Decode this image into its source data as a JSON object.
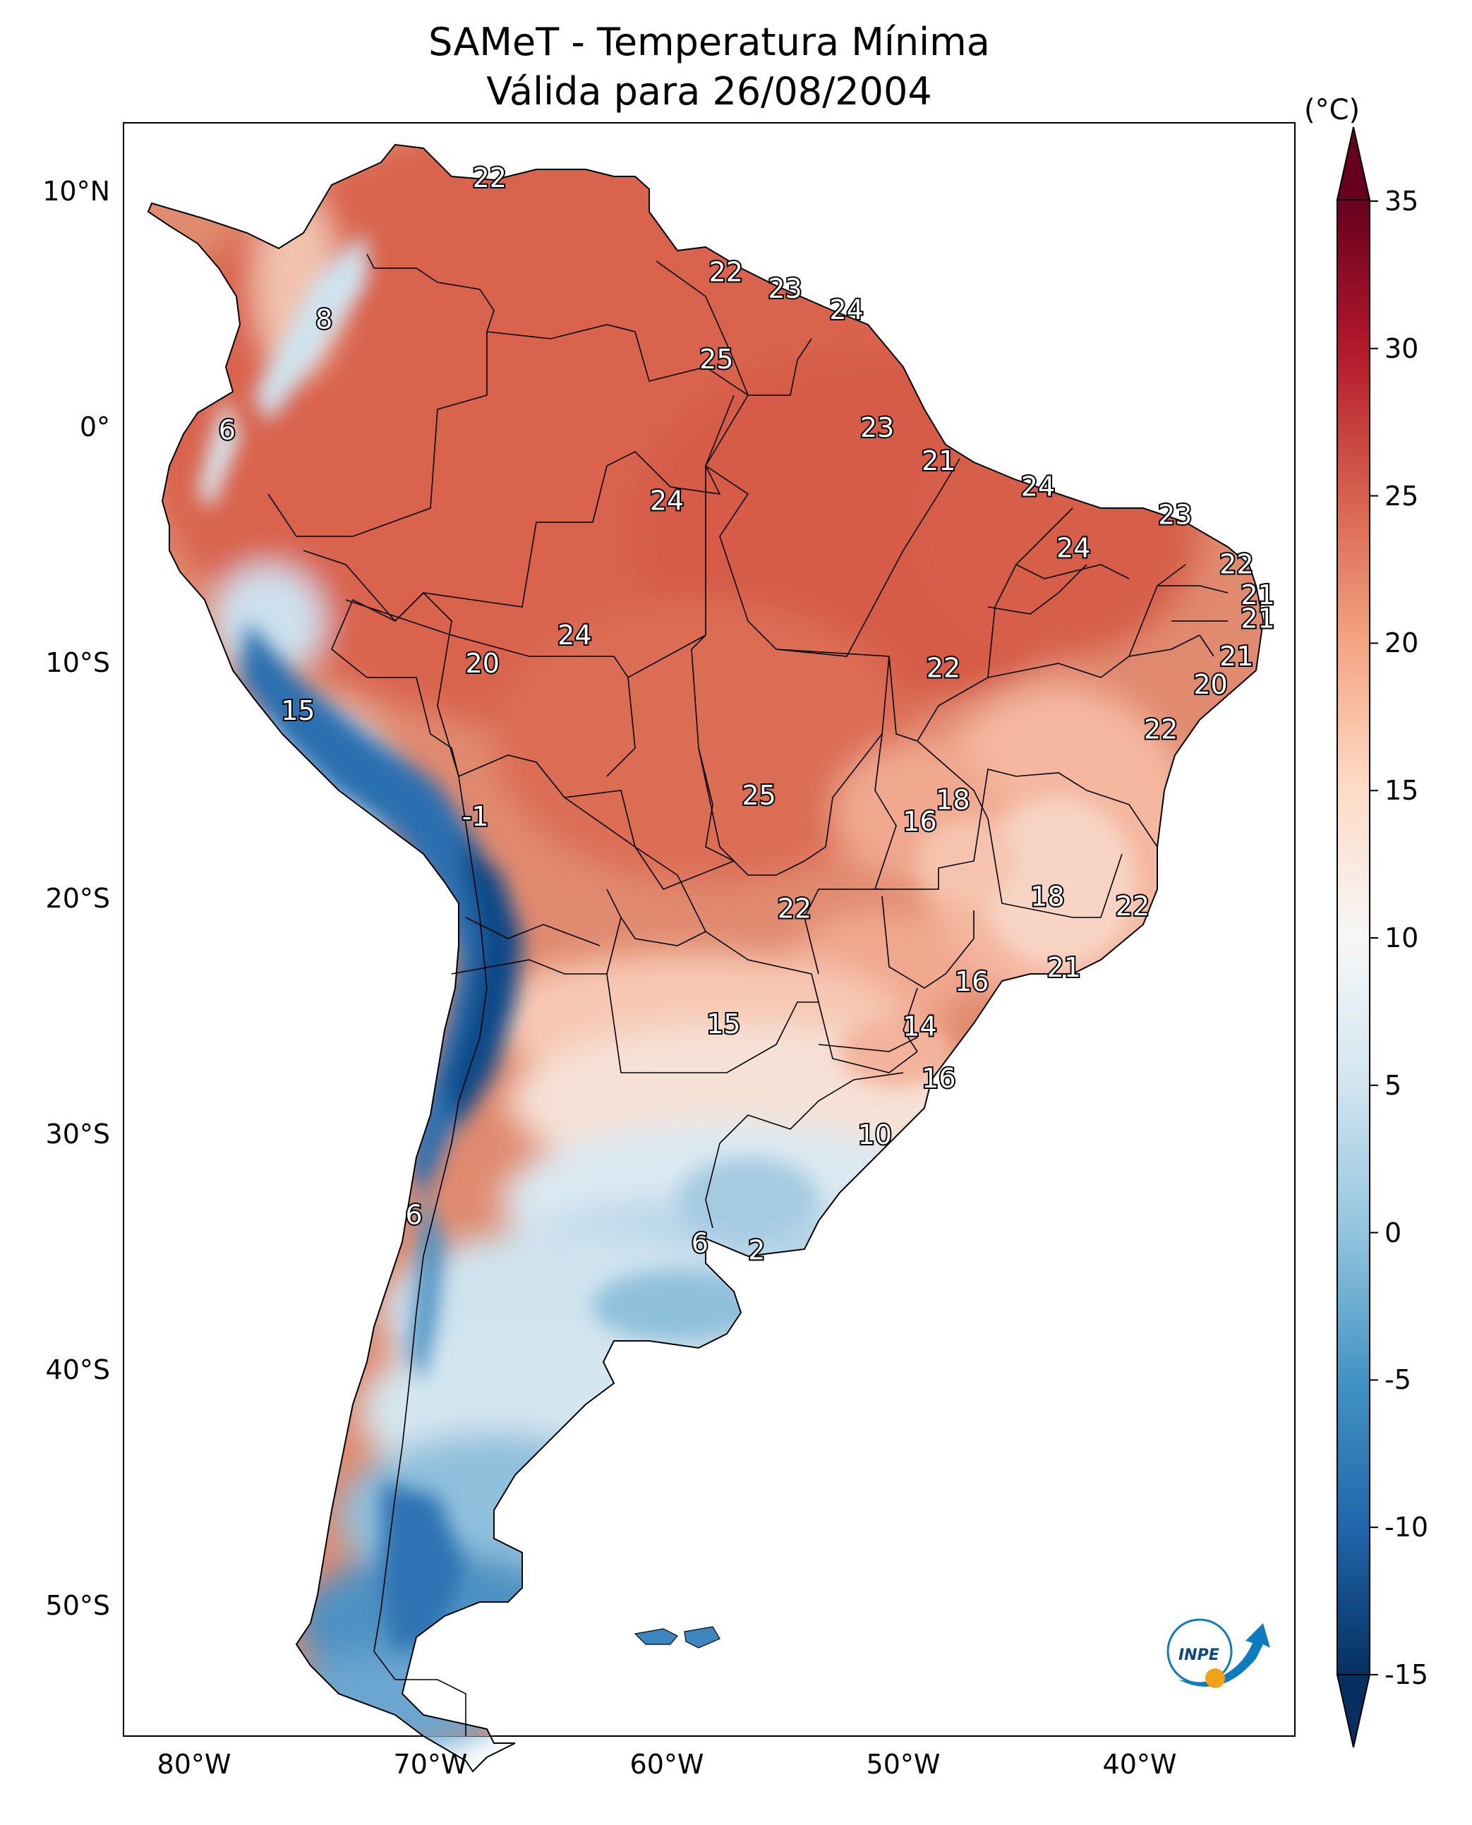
{
  "title": {
    "line1": "SAMeT - Temperatura Mínima",
    "line2": "Válida para 26/08/2004"
  },
  "axes": {
    "lon_ticks": [
      "80°W",
      "70°W",
      "60°W",
      "50°W",
      "40°W"
    ],
    "lat_ticks": [
      "10°N",
      "0°",
      "10°S",
      "20°S",
      "30°S",
      "40°S",
      "50°S"
    ]
  },
  "colorbar": {
    "unit": "(°C)",
    "ticks": [
      "35",
      "30",
      "25",
      "20",
      "15",
      "10",
      "5",
      "0",
      "-5",
      "-10",
      "-15"
    ],
    "range": [
      -15,
      35
    ],
    "colors": [
      "#053061",
      "#2166ac",
      "#4393c3",
      "#92c5de",
      "#d1e5f0",
      "#f7f7f7",
      "#fddbc7",
      "#f4a582",
      "#d6604d",
      "#b2182b",
      "#67001f"
    ]
  },
  "station_values": [
    {
      "label": "22",
      "lon": -67.5,
      "lat": 10.6
    },
    {
      "label": "8",
      "lon": -74.5,
      "lat": 4.6
    },
    {
      "label": "22",
      "lon": -57.5,
      "lat": 6.6
    },
    {
      "label": "23",
      "lon": -55.0,
      "lat": 5.9
    },
    {
      "label": "24",
      "lon": -52.4,
      "lat": 5.0
    },
    {
      "label": "25",
      "lon": -57.9,
      "lat": 2.9
    },
    {
      "label": "6",
      "lon": -78.6,
      "lat": -0.1
    },
    {
      "label": "23",
      "lon": -51.1,
      "lat": 0.0
    },
    {
      "label": "21",
      "lon": -48.5,
      "lat": -1.4
    },
    {
      "label": "24",
      "lon": -44.3,
      "lat": -2.5
    },
    {
      "label": "23",
      "lon": -38.5,
      "lat": -3.7
    },
    {
      "label": "24",
      "lon": -60.0,
      "lat": -3.1
    },
    {
      "label": "24",
      "lon": -42.8,
      "lat": -5.1
    },
    {
      "label": "22",
      "lon": -35.9,
      "lat": -5.8
    },
    {
      "label": "21",
      "lon": -35.0,
      "lat": -7.1
    },
    {
      "label": "21",
      "lon": -35.0,
      "lat": -8.1
    },
    {
      "label": "24",
      "lon": -63.9,
      "lat": -8.8
    },
    {
      "label": "20",
      "lon": -67.8,
      "lat": -10.0
    },
    {
      "label": "22",
      "lon": -48.3,
      "lat": -10.2
    },
    {
      "label": "21",
      "lon": -35.9,
      "lat": -9.7
    },
    {
      "label": "20",
      "lon": -37.0,
      "lat": -10.9
    },
    {
      "label": "15",
      "lon": -75.6,
      "lat": -12.0
    },
    {
      "label": "22",
      "lon": -39.1,
      "lat": -12.8
    },
    {
      "label": "25",
      "lon": -56.1,
      "lat": -15.6
    },
    {
      "label": "18",
      "lon": -47.9,
      "lat": -15.8
    },
    {
      "label": "16",
      "lon": -49.3,
      "lat": -16.7
    },
    {
      "label": "-1",
      "lon": -68.1,
      "lat": -16.5
    },
    {
      "label": "18",
      "lon": -43.9,
      "lat": -19.9
    },
    {
      "label": "22",
      "lon": -40.3,
      "lat": -20.3
    },
    {
      "label": "22",
      "lon": -54.6,
      "lat": -20.4
    },
    {
      "label": "21",
      "lon": -43.2,
      "lat": -22.9
    },
    {
      "label": "16",
      "lon": -47.1,
      "lat": -23.5
    },
    {
      "label": "15",
      "lon": -57.6,
      "lat": -25.3
    },
    {
      "label": "14",
      "lon": -49.3,
      "lat": -25.4
    },
    {
      "label": "16",
      "lon": -48.5,
      "lat": -27.6
    },
    {
      "label": "10",
      "lon": -51.2,
      "lat": -30.0
    },
    {
      "label": "6",
      "lon": -70.7,
      "lat": -33.4
    },
    {
      "label": "6",
      "lon": -58.6,
      "lat": -34.6
    },
    {
      "label": "2",
      "lon": -56.2,
      "lat": -34.9
    }
  ],
  "logo": {
    "text": "INPE",
    "colors": [
      "#0e7bbf",
      "#f0a318"
    ]
  }
}
